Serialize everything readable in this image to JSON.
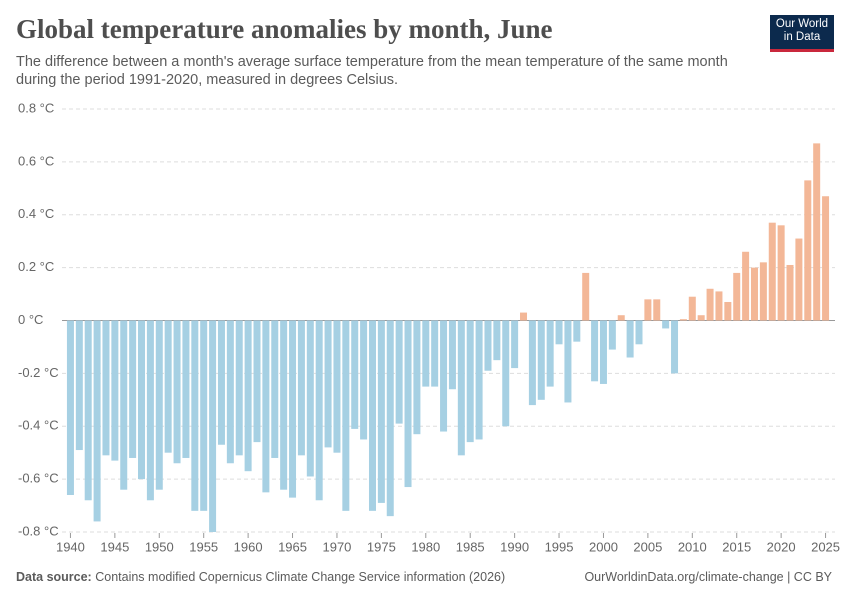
{
  "chart_data": {
    "type": "bar",
    "title": "Global temperature anomalies by month, June",
    "subtitle": "The difference between a month's average surface temperature from the mean temperature of the same month during the period 1991-2020, measured in degrees Celsius.",
    "logo": [
      "Our World",
      "in Data"
    ],
    "source_label": "Data source:",
    "source": "Contains modified Copernicus Climate Change Service information (2026)",
    "credit": "OurWorldinData.org/climate-change | CC BY",
    "x": [
      1940,
      1941,
      1942,
      1943,
      1944,
      1945,
      1946,
      1947,
      1948,
      1949,
      1950,
      1951,
      1952,
      1953,
      1954,
      1955,
      1956,
      1957,
      1958,
      1959,
      1960,
      1961,
      1962,
      1963,
      1964,
      1965,
      1966,
      1967,
      1968,
      1969,
      1970,
      1971,
      1972,
      1973,
      1974,
      1975,
      1976,
      1977,
      1978,
      1979,
      1980,
      1981,
      1982,
      1983,
      1984,
      1985,
      1986,
      1987,
      1988,
      1989,
      1990,
      1991,
      1992,
      1993,
      1994,
      1995,
      1996,
      1997,
      1998,
      1999,
      2000,
      2001,
      2002,
      2003,
      2004,
      2005,
      2006,
      2007,
      2008,
      2009,
      2010,
      2011,
      2012,
      2013,
      2014,
      2015,
      2016,
      2017,
      2018,
      2019,
      2020,
      2021,
      2022,
      2023,
      2024,
      2025
    ],
    "values": [
      -0.66,
      -0.49,
      -0.68,
      -0.76,
      -0.51,
      -0.53,
      -0.64,
      -0.52,
      -0.6,
      -0.68,
      -0.64,
      -0.5,
      -0.54,
      -0.52,
      -0.72,
      -0.72,
      -0.8,
      -0.47,
      -0.54,
      -0.51,
      -0.57,
      -0.46,
      -0.65,
      -0.52,
      -0.64,
      -0.67,
      -0.51,
      -0.59,
      -0.68,
      -0.48,
      -0.5,
      -0.72,
      -0.41,
      -0.45,
      -0.72,
      -0.69,
      -0.74,
      -0.39,
      -0.63,
      -0.43,
      -0.25,
      -0.25,
      -0.42,
      -0.26,
      -0.51,
      -0.46,
      -0.45,
      -0.19,
      -0.15,
      -0.4,
      -0.18,
      0.03,
      -0.32,
      -0.3,
      -0.25,
      -0.09,
      -0.31,
      -0.08,
      0.18,
      -0.23,
      -0.24,
      -0.11,
      0.02,
      -0.14,
      -0.09,
      0.08,
      0.08,
      -0.03,
      -0.2,
      0.005,
      0.09,
      0.02,
      0.12,
      0.11,
      0.07,
      0.18,
      0.26,
      0.2,
      0.22,
      0.37,
      0.36,
      0.21,
      0.31,
      0.53,
      0.67,
      0.47
    ],
    "colors": {
      "positive": "#f3b797",
      "negative": "#a6d0e3"
    },
    "xlim": [
      1940,
      2025
    ],
    "xticks": [
      1940,
      1945,
      1950,
      1955,
      1960,
      1965,
      1970,
      1975,
      1980,
      1985,
      1990,
      1995,
      2000,
      2005,
      2010,
      2015,
      2020,
      2025
    ],
    "ylim": [
      -0.8,
      0.8
    ],
    "yticks": [
      {
        "value": -0.8,
        "label": "-0.8 °C"
      },
      {
        "value": -0.6,
        "label": "-0.6 °C"
      },
      {
        "value": -0.4,
        "label": "-0.4 °C"
      },
      {
        "value": -0.2,
        "label": "-0.2 °C"
      },
      {
        "value": 0,
        "label": "0 °C"
      },
      {
        "value": 0.2,
        "label": "0.2 °C"
      },
      {
        "value": 0.4,
        "label": "0.4 °C"
      },
      {
        "value": 0.6,
        "label": "0.6 °C"
      },
      {
        "value": 0.8,
        "label": "0.8 °C"
      }
    ],
    "grid": true
  }
}
